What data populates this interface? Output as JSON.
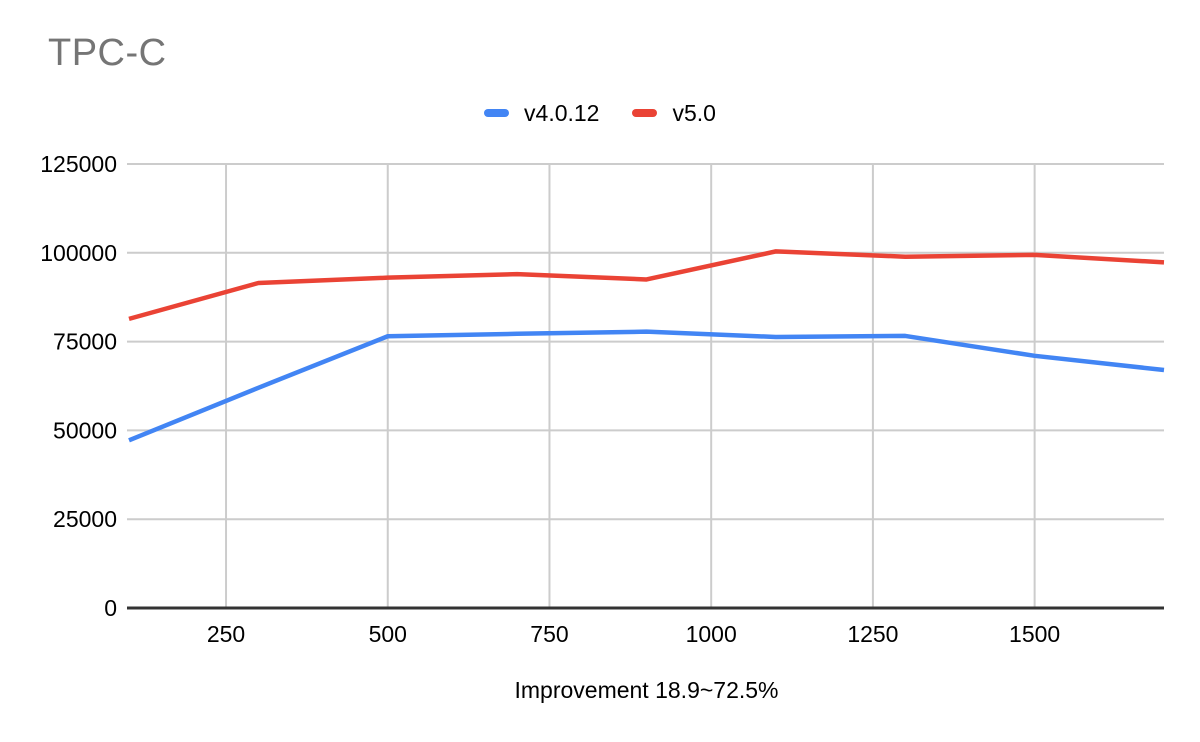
{
  "chart_data": {
    "type": "line",
    "title": "TPC-C",
    "xlabel": "Improvement 18.9~72.5%",
    "ylabel": "",
    "x": [
      100,
      300,
      500,
      700,
      900,
      1100,
      1300,
      1500,
      1700
    ],
    "series": [
      {
        "name": "v4.0.12",
        "color": "#4285F4",
        "values": [
          47200,
          62000,
          76500,
          77200,
          77800,
          76300,
          76600,
          71000,
          67000
        ]
      },
      {
        "name": "v5.0",
        "color": "#EA4335",
        "values": [
          81400,
          91500,
          93000,
          94000,
          92500,
          100400,
          98900,
          99400,
          97300
        ]
      }
    ],
    "xlim": [
      100,
      1700
    ],
    "ylim": [
      0,
      125000
    ],
    "x_ticks": [
      250,
      500,
      750,
      1000,
      1250,
      1500
    ],
    "y_ticks": [
      0,
      25000,
      50000,
      75000,
      100000,
      125000
    ],
    "grid": true,
    "legend_position": "top-center",
    "style": {
      "title_color": "#757575",
      "text_color": "#000000",
      "grid_color": "#cccccc",
      "axis_color": "#333333",
      "background": "#ffffff"
    }
  }
}
